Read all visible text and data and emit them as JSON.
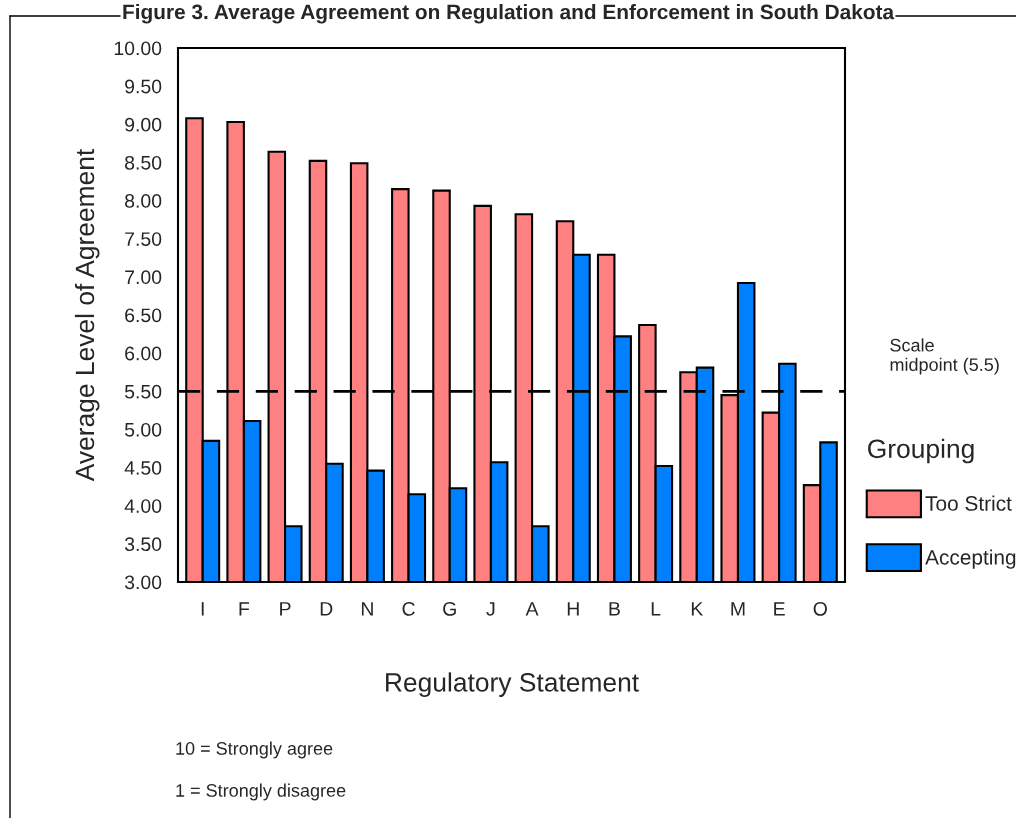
{
  "chart_data": {
    "type": "bar",
    "title": "Figure 3. Average Agreement on Regulation and Enforcement in South Dakota",
    "xlabel": "Regulatory Statement",
    "ylabel": "Average Level of Agreement",
    "legend_title": "Grouping",
    "categories": [
      "I",
      "F",
      "P",
      "D",
      "N",
      "C",
      "G",
      "J",
      "A",
      "H",
      "B",
      "L",
      "K",
      "M",
      "E",
      "O"
    ],
    "series": [
      {
        "name": "Too Strict",
        "color": "#ff8080",
        "values": [
          9.08,
          9.03,
          8.64,
          8.52,
          8.49,
          8.15,
          8.13,
          7.93,
          7.82,
          7.73,
          7.29,
          6.37,
          5.75,
          5.45,
          5.22,
          4.27
        ]
      },
      {
        "name": "Accepting",
        "color": "#0080ff",
        "values": [
          4.85,
          5.11,
          3.73,
          4.55,
          4.46,
          4.15,
          4.23,
          4.57,
          3.73,
          7.29,
          6.22,
          4.52,
          5.81,
          6.92,
          5.86,
          4.83
        ]
      }
    ],
    "ylim": [
      3,
      10
    ],
    "yticks": [
      {
        "value": 3,
        "label": "3.00"
      },
      {
        "value": 3.5,
        "label": "3.50"
      },
      {
        "value": 4,
        "label": "4.00"
      },
      {
        "value": 4.5,
        "label": "4.50"
      },
      {
        "value": 5,
        "label": "5.00"
      },
      {
        "value": 5.5,
        "label": "5.50"
      },
      {
        "value": 6,
        "label": "6.00"
      },
      {
        "value": 6.5,
        "label": "6.50"
      },
      {
        "value": 7,
        "label": "7.00"
      },
      {
        "value": 7.5,
        "label": "7.50"
      },
      {
        "value": 8,
        "label": "8.00"
      },
      {
        "value": 8.5,
        "label": "8.50"
      },
      {
        "value": 9,
        "label": "9.00"
      },
      {
        "value": 9.5,
        "label": "9.50"
      },
      {
        "value": 10,
        "label": "10.00"
      }
    ],
    "ref_lines": [
      {
        "axis": "y",
        "value": 5.5,
        "label": "Scale\nmidpoint (5.5)",
        "color": "#000000",
        "line_style": "dashed"
      }
    ],
    "annotations": [
      "10 = Strongly agree",
      "1 = Strongly disagree"
    ],
    "grid": false,
    "legend": "right"
  }
}
